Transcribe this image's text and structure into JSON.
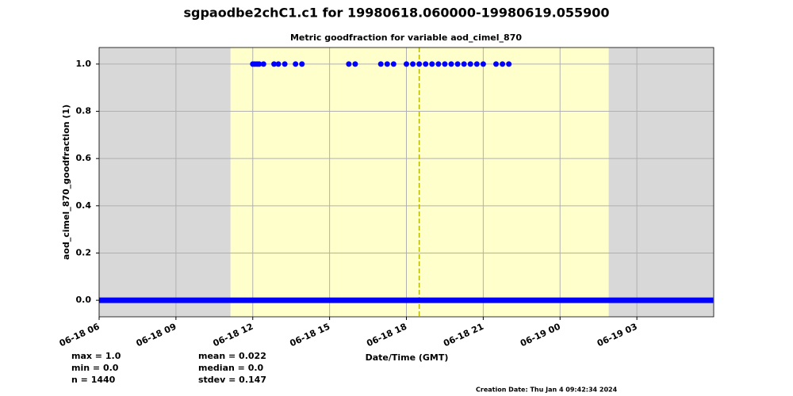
{
  "chart_data": {
    "type": "scatter",
    "title": "sgpaodbe2chC1.c1 for 19980618.060000-19980619.055900",
    "subtitle": "Metric goodfraction for variable aod_cimel_870",
    "x_label": "Date/Time (GMT)",
    "y_label": "aod_cimel_870_goodfraction (1)",
    "xlim": [
      6,
      30
    ],
    "ylim": [
      -0.07,
      1.07
    ],
    "xticks": [
      {
        "value": 6,
        "label": "06-18 06"
      },
      {
        "value": 9,
        "label": "06-18 09"
      },
      {
        "value": 12,
        "label": "06-18 12"
      },
      {
        "value": 15,
        "label": "06-18 15"
      },
      {
        "value": 18,
        "label": "06-18 18"
      },
      {
        "value": 21,
        "label": "06-18 21"
      },
      {
        "value": 24,
        "label": "06-19 00"
      },
      {
        "value": 27,
        "label": "06-19 03"
      }
    ],
    "yticks": [
      {
        "value": 0,
        "label": "0.0"
      },
      {
        "value": 0.2,
        "label": "0.2"
      },
      {
        "value": 0.4,
        "label": "0.4"
      },
      {
        "value": 0.6,
        "label": "0.6"
      },
      {
        "value": 0.8,
        "label": "0.8"
      },
      {
        "value": 1,
        "label": "1.0"
      }
    ],
    "grid": true,
    "background_color": "#d8d8d8",
    "regions": [
      {
        "from": 11.13,
        "to": 25.9,
        "color": "#ffffcc"
      }
    ],
    "vline": {
      "x": 18.5,
      "color": "#b8b800"
    },
    "series": [
      {
        "color": "#0000ff",
        "x": [
          12.0,
          12.08,
          12.17,
          12.25,
          12.42,
          12.83,
          13.0,
          13.25,
          13.67,
          13.92,
          15.75,
          16.0,
          17.0,
          17.25,
          17.5,
          18.0,
          18.25,
          18.5,
          18.75,
          19.0,
          19.25,
          19.5,
          19.75,
          20.0,
          20.25,
          20.5,
          20.75,
          21.0,
          21.5,
          21.75,
          22.0
        ],
        "values": [
          1,
          1,
          1,
          1,
          1,
          1,
          1,
          1,
          1,
          1,
          1,
          1,
          1,
          1,
          1,
          1,
          1,
          1,
          1,
          1,
          1,
          1,
          1,
          1,
          1,
          1,
          1,
          1,
          1,
          1,
          1
        ]
      },
      {
        "color": "#0000ff",
        "x": [
          6,
          29.98
        ],
        "values": [
          0,
          0
        ]
      }
    ],
    "stats": [
      "max = 1.0",
      "min = 0.0",
      "n = 1440",
      "mean = 0.022",
      "median = 0.0",
      "stdev = 0.147"
    ],
    "creation_date": "Creation Date: Thu Jan  4 09:42:34 2024"
  }
}
